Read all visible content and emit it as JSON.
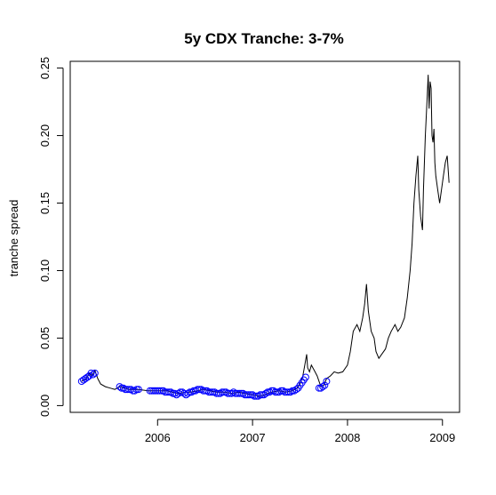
{
  "chart_data": {
    "type": "line",
    "title": "5y CDX Tranche: 3-7%",
    "xlabel": "",
    "ylabel": "tranche spread",
    "xlim": [
      2005.08,
      2009.18
    ],
    "ylim": [
      -0.005,
      0.255
    ],
    "x_ticks": [
      2006,
      2007,
      2008,
      2009
    ],
    "x_tick_labels": [
      "2006",
      "2007",
      "2008",
      "2009"
    ],
    "y_ticks": [
      0.0,
      0.05,
      0.1,
      0.15,
      0.2,
      0.25
    ],
    "y_tick_labels": [
      "0.00",
      "0.05",
      "0.10",
      "0.15",
      "0.20",
      "0.25"
    ],
    "grid": false,
    "colors": {
      "line": "#000000",
      "points": "#0000ff"
    },
    "series": [
      {
        "style": "line",
        "x": [
          2005.2,
          2005.25,
          2005.28,
          2005.31,
          2005.34,
          2005.37,
          2005.4,
          2005.45,
          2005.5,
          2005.55,
          2005.6,
          2005.65,
          2005.7,
          2005.8,
          2005.9,
          2006.0,
          2006.1,
          2006.15,
          2006.22,
          2006.3,
          2006.35,
          2006.42,
          2006.48,
          2006.55,
          2006.62,
          2006.7,
          2006.78,
          2006.85,
          2006.92,
          2007.0,
          2007.07,
          2007.12,
          2007.2,
          2007.28,
          2007.35,
          2007.42,
          2007.47,
          2007.5,
          2007.53,
          2007.55,
          2007.57,
          2007.58,
          2007.6,
          2007.62,
          2007.65,
          2007.68,
          2007.7,
          2007.72,
          2007.75,
          2007.78,
          2007.82,
          2007.86,
          2007.9,
          2007.95,
          2008.0,
          2008.03,
          2008.06,
          2008.1,
          2008.13,
          2008.16,
          2008.18,
          2008.2,
          2008.22,
          2008.25,
          2008.28,
          2008.3,
          2008.33,
          2008.36,
          2008.4,
          2008.43,
          2008.46,
          2008.5,
          2008.53,
          2008.56,
          2008.6,
          2008.63,
          2008.66,
          2008.68,
          2008.7,
          2008.72,
          2008.74,
          2008.75,
          2008.77,
          2008.79,
          2008.8,
          2008.82,
          2008.84,
          2008.85,
          2008.86,
          2008.87,
          2008.88,
          2008.89,
          2008.9,
          2008.91,
          2008.92,
          2008.93,
          2008.95,
          2008.97,
          2008.99,
          2009.01,
          2009.03,
          2009.05,
          2009.07
        ],
        "values": [
          0.018,
          0.02,
          0.024,
          0.022,
          0.026,
          0.02,
          0.016,
          0.014,
          0.013,
          0.012,
          0.014,
          0.013,
          0.012,
          0.012,
          0.011,
          0.011,
          0.011,
          0.01,
          0.009,
          0.01,
          0.01,
          0.011,
          0.012,
          0.011,
          0.01,
          0.01,
          0.009,
          0.01,
          0.009,
          0.008,
          0.007,
          0.008,
          0.01,
          0.011,
          0.01,
          0.011,
          0.013,
          0.016,
          0.022,
          0.03,
          0.038,
          0.028,
          0.025,
          0.03,
          0.026,
          0.022,
          0.018,
          0.014,
          0.015,
          0.02,
          0.022,
          0.025,
          0.024,
          0.025,
          0.03,
          0.04,
          0.055,
          0.06,
          0.055,
          0.065,
          0.075,
          0.09,
          0.07,
          0.055,
          0.05,
          0.04,
          0.035,
          0.038,
          0.042,
          0.05,
          0.055,
          0.06,
          0.055,
          0.058,
          0.065,
          0.08,
          0.1,
          0.12,
          0.15,
          0.17,
          0.185,
          0.16,
          0.14,
          0.13,
          0.16,
          0.2,
          0.23,
          0.245,
          0.22,
          0.24,
          0.235,
          0.2,
          0.195,
          0.205,
          0.18,
          0.17,
          0.16,
          0.15,
          0.16,
          0.17,
          0.18,
          0.185,
          0.165
        ]
      },
      {
        "style": "points",
        "x": [
          2005.2,
          2005.22,
          2005.24,
          2005.26,
          2005.28,
          2005.3,
          2005.32,
          2005.34,
          2005.6,
          2005.62,
          2005.64,
          2005.66,
          2005.68,
          2005.7,
          2005.72,
          2005.74,
          2005.76,
          2005.78,
          2005.8,
          2005.92,
          2005.94,
          2005.96,
          2005.98,
          2006.0,
          2006.02,
          2006.04,
          2006.06,
          2006.08,
          2006.1,
          2006.12,
          2006.14,
          2006.16,
          2006.18,
          2006.2,
          2006.22,
          2006.24,
          2006.26,
          2006.28,
          2006.3,
          2006.32,
          2006.34,
          2006.36,
          2006.38,
          2006.4,
          2006.42,
          2006.44,
          2006.46,
          2006.48,
          2006.5,
          2006.52,
          2006.54,
          2006.56,
          2006.58,
          2006.6,
          2006.62,
          2006.64,
          2006.66,
          2006.68,
          2006.7,
          2006.72,
          2006.74,
          2006.76,
          2006.78,
          2006.8,
          2006.82,
          2006.84,
          2006.86,
          2006.88,
          2006.9,
          2006.92,
          2006.94,
          2006.96,
          2006.98,
          2007.0,
          2007.02,
          2007.04,
          2007.06,
          2007.08,
          2007.1,
          2007.12,
          2007.14,
          2007.16,
          2007.18,
          2007.2,
          2007.22,
          2007.24,
          2007.26,
          2007.28,
          2007.3,
          2007.32,
          2007.34,
          2007.36,
          2007.38,
          2007.4,
          2007.42,
          2007.44,
          2007.46,
          2007.48,
          2007.5,
          2007.52,
          2007.54,
          2007.56,
          2007.7,
          2007.72,
          2007.74,
          2007.76,
          2007.78
        ],
        "values": [
          0.018,
          0.019,
          0.02,
          0.021,
          0.022,
          0.024,
          0.023,
          0.024,
          0.014,
          0.013,
          0.013,
          0.012,
          0.012,
          0.012,
          0.012,
          0.011,
          0.011,
          0.012,
          0.012,
          0.011,
          0.011,
          0.011,
          0.011,
          0.011,
          0.011,
          0.011,
          0.011,
          0.01,
          0.01,
          0.01,
          0.01,
          0.009,
          0.009,
          0.008,
          0.009,
          0.01,
          0.01,
          0.009,
          0.008,
          0.009,
          0.01,
          0.01,
          0.011,
          0.011,
          0.012,
          0.012,
          0.012,
          0.011,
          0.011,
          0.011,
          0.01,
          0.01,
          0.01,
          0.01,
          0.009,
          0.009,
          0.009,
          0.01,
          0.01,
          0.01,
          0.009,
          0.009,
          0.009,
          0.01,
          0.009,
          0.009,
          0.009,
          0.009,
          0.009,
          0.008,
          0.008,
          0.008,
          0.008,
          0.008,
          0.007,
          0.007,
          0.007,
          0.008,
          0.008,
          0.008,
          0.009,
          0.01,
          0.01,
          0.011,
          0.011,
          0.01,
          0.01,
          0.01,
          0.011,
          0.011,
          0.01,
          0.01,
          0.01,
          0.01,
          0.011,
          0.011,
          0.012,
          0.013,
          0.015,
          0.017,
          0.019,
          0.021,
          0.013,
          0.013,
          0.014,
          0.015,
          0.018
        ]
      }
    ]
  }
}
